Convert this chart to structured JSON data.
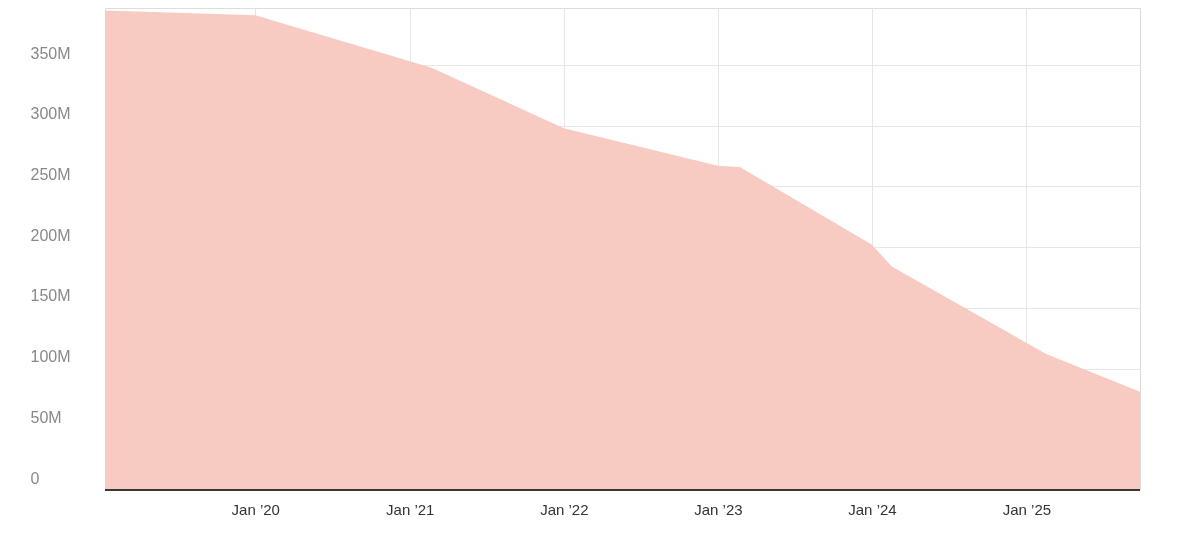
{
  "chart_data": {
    "type": "area",
    "x": [
      "2019-01-10",
      "2020-01-01",
      "2021-02-20",
      "2022-01-01",
      "2023-01-01",
      "2023-02-22",
      "2024-01-01",
      "2024-02-17",
      "2025-02-17",
      "2025-09-27"
    ],
    "series": [
      {
        "color": "#f7cbc2",
        "values": [
          395,
          391,
          348,
          298,
          267,
          266,
          202,
          184,
          112,
          81
        ]
      }
    ],
    "xlim": [
      "2019-01-10",
      "2025-09-27"
    ],
    "xticks": [
      {
        "value": "2020-01-01",
        "label": "Jan ’20"
      },
      {
        "value": "2021-01-01",
        "label": "Jan ’21"
      },
      {
        "value": "2022-01-01",
        "label": "Jan ’22"
      },
      {
        "value": "2023-01-01",
        "label": "Jan ’23"
      },
      {
        "value": "2024-01-01",
        "label": "Jan ’24"
      },
      {
        "value": "2025-01-01",
        "label": "Jan ’25"
      }
    ],
    "ylim": [
      0,
      397
    ],
    "yticks": [
      0,
      {
        "value": 50,
        "label": "50M"
      },
      {
        "value": 100,
        "label": "100M"
      },
      {
        "value": 150,
        "label": "150M"
      },
      {
        "value": 200,
        "label": "200M"
      },
      {
        "value": 250,
        "label": "250M"
      },
      {
        "value": 300,
        "label": "300M"
      },
      {
        "value": 350,
        "label": "350M"
      }
    ],
    "grid": true
  }
}
